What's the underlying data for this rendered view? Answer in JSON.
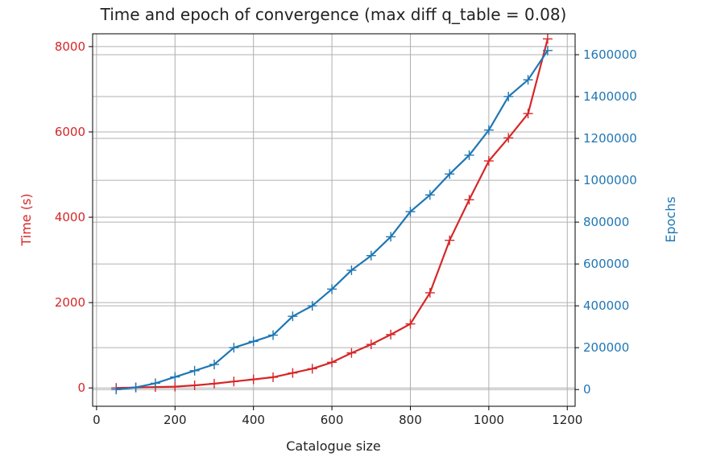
{
  "chart_data": {
    "type": "line",
    "title": "Time and epoch of convergence (max diff q_table = 0.08)",
    "xlabel": "Catalogue size",
    "ylabel_left": "Time (s)",
    "ylabel_right": "Epochs",
    "xlim": [
      -10,
      1220
    ],
    "ylim_left": [
      -430,
      8300
    ],
    "ylim_right": [
      -80000,
      1700000
    ],
    "x_ticks": [
      0,
      200,
      400,
      600,
      800,
      1000,
      1200
    ],
    "y_left_ticks": [
      0,
      2000,
      4000,
      6000,
      8000
    ],
    "y_right_ticks": [
      0,
      200000,
      400000,
      600000,
      800000,
      1000000,
      1200000,
      1400000,
      1600000
    ],
    "grid": true,
    "marker": "+",
    "colors": {
      "time": "#d62728",
      "epochs": "#1f77b4",
      "grid": "#b0b0b0",
      "axis": "#000000"
    },
    "series": [
      {
        "axis": "left",
        "x": [
          50,
          100,
          150,
          200,
          250,
          300,
          350,
          400,
          450,
          500,
          550,
          600,
          650,
          700,
          750,
          800,
          850,
          900,
          950,
          1000,
          1050,
          1100,
          1150
        ],
        "values": [
          0,
          10,
          20,
          30,
          60,
          100,
          150,
          200,
          250,
          350,
          450,
          600,
          820,
          1020,
          1250,
          1500,
          2230,
          3460,
          4410,
          5320,
          5860,
          6430,
          8180
        ]
      },
      {
        "axis": "right",
        "x": [
          50,
          100,
          150,
          200,
          250,
          300,
          350,
          400,
          450,
          500,
          550,
          600,
          650,
          700,
          750,
          800,
          850,
          900,
          950,
          1000,
          1050,
          1100,
          1150
        ],
        "values": [
          0,
          10000,
          30000,
          60000,
          90000,
          120000,
          200000,
          230000,
          260000,
          350000,
          400000,
          480000,
          570000,
          640000,
          730000,
          850000,
          930000,
          1030000,
          1120000,
          1240000,
          1400000,
          1480000,
          1620000
        ]
      }
    ]
  }
}
